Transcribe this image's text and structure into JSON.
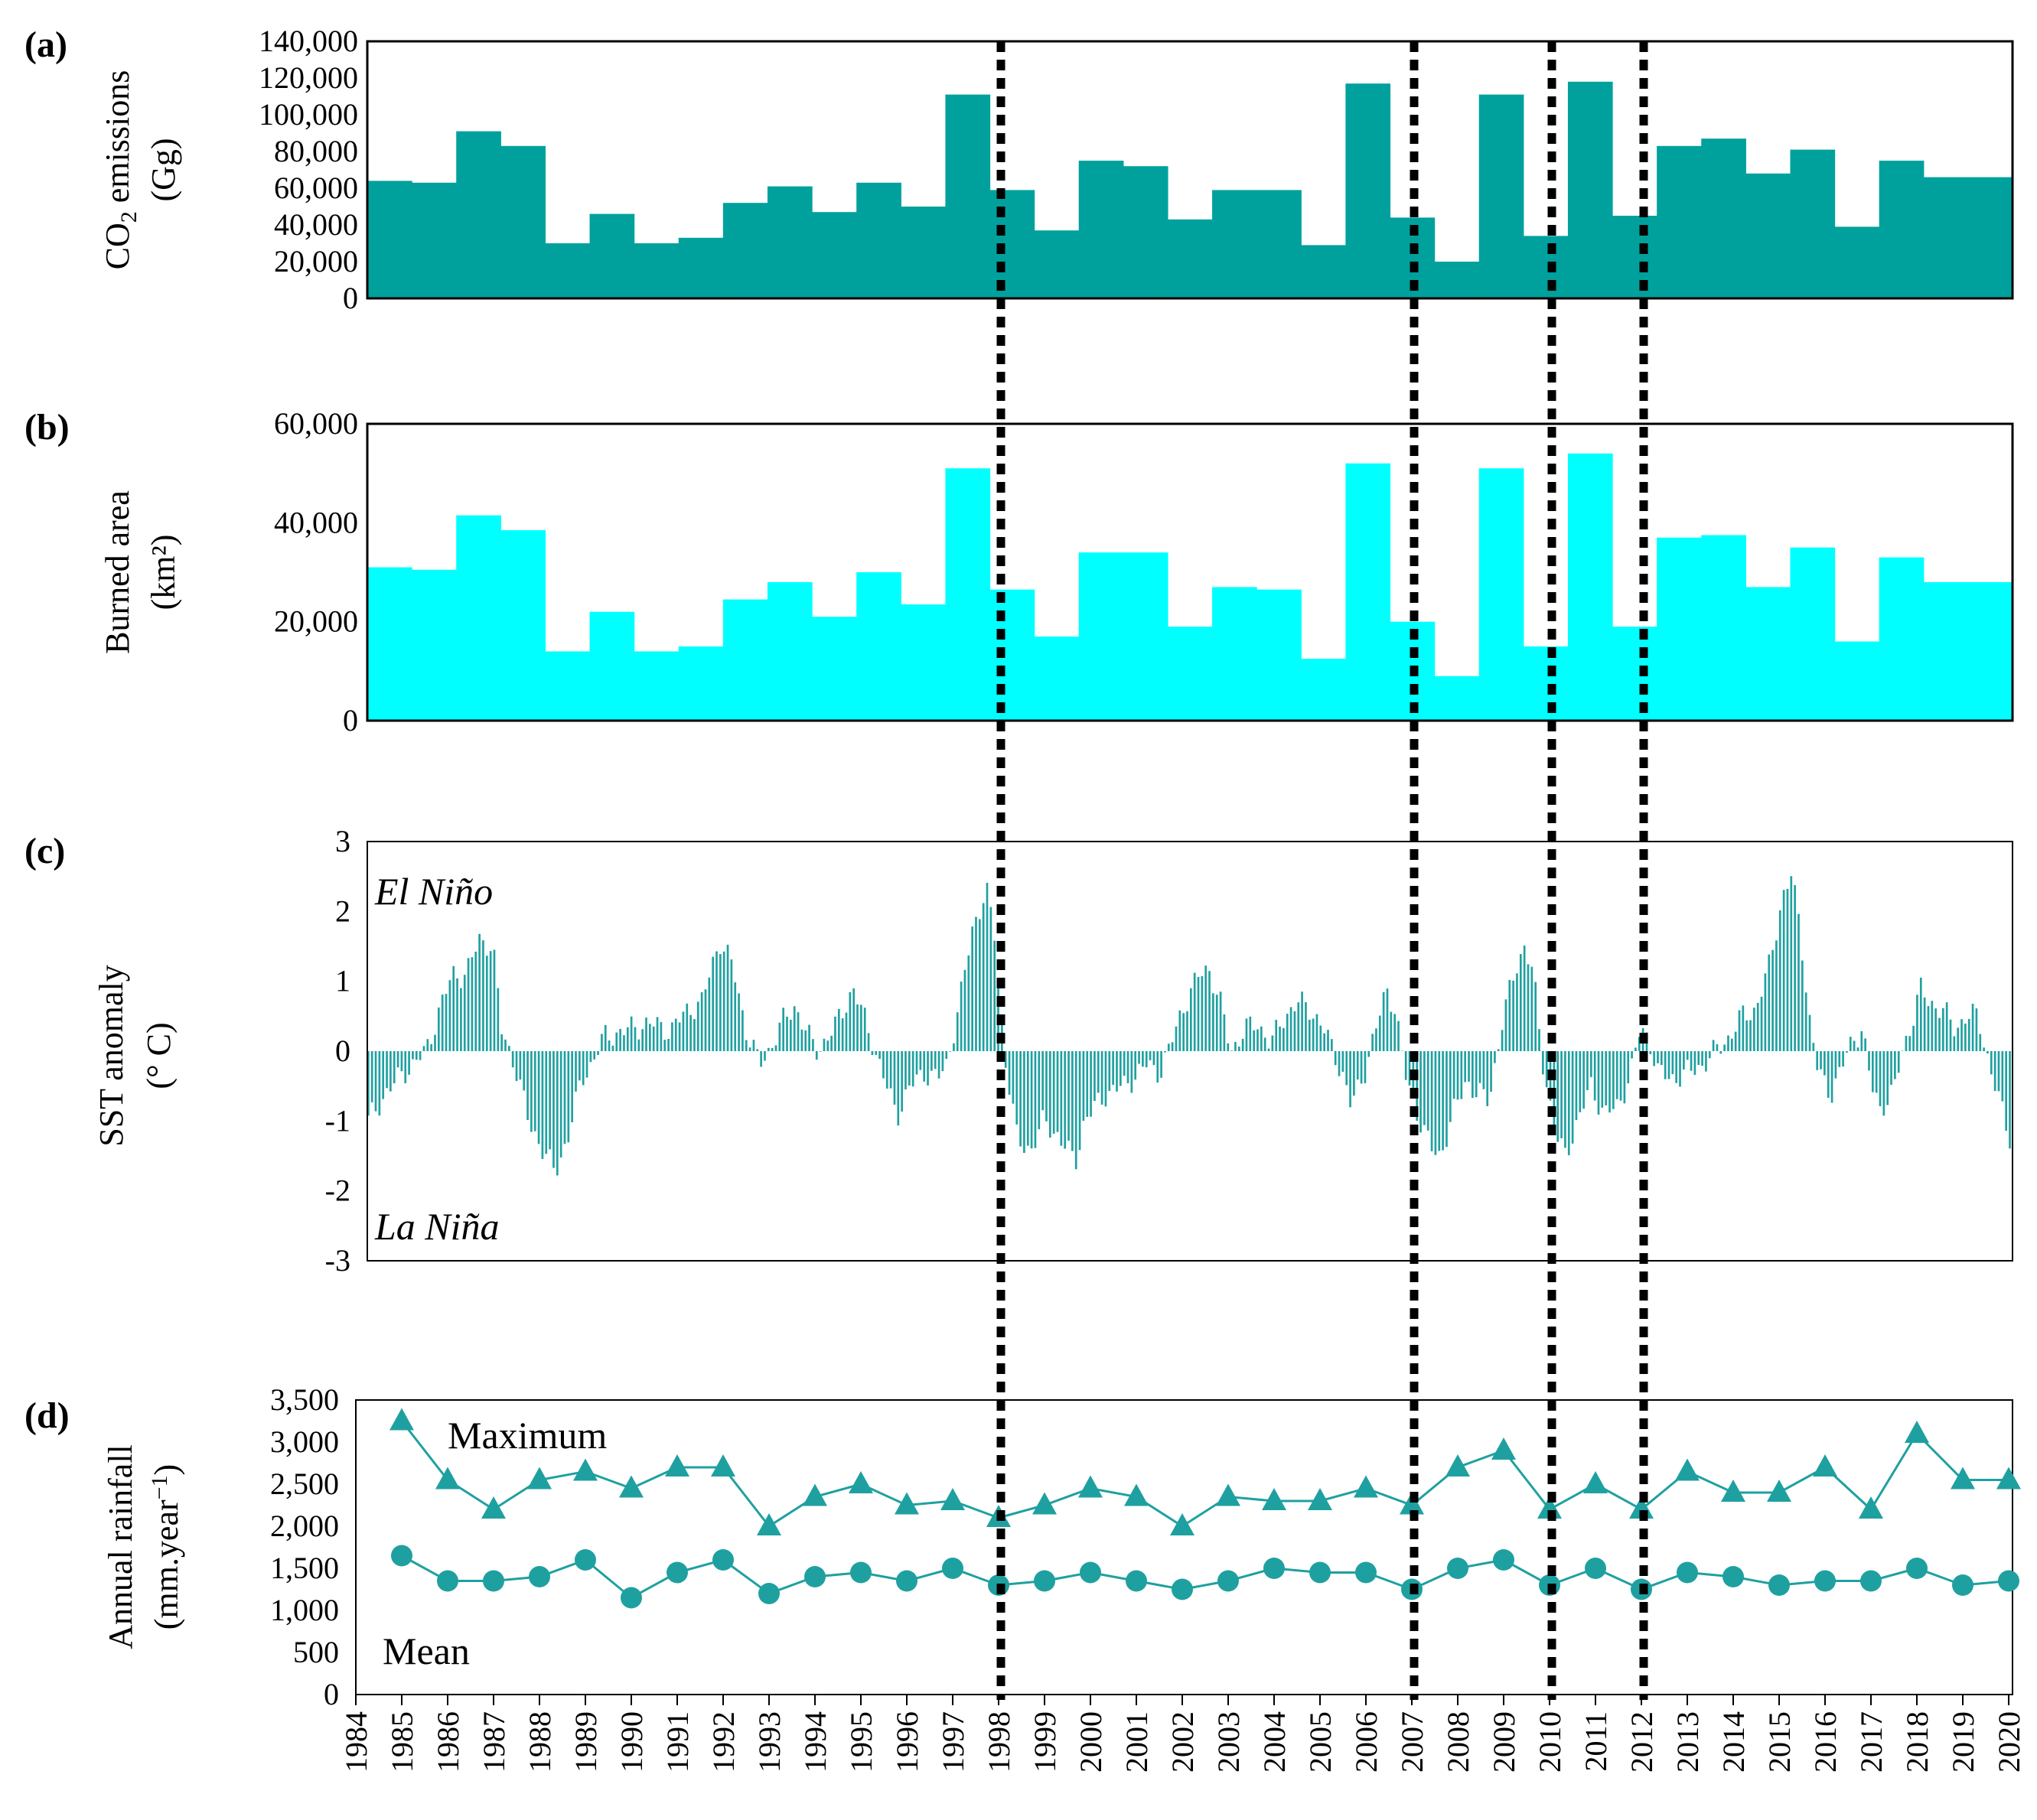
{
  "chart_data": [
    {
      "panel": "(a)",
      "type": "bar",
      "ylabel": "CO₂ emissions (Gg)",
      "ylabel_lines": [
        "CO",
        "2",
        " emissions",
        "(Gg)"
      ],
      "ylim": [
        0,
        140000
      ],
      "yticks": [
        "0",
        "20,000",
        "40,000",
        "60,000",
        "80,000",
        "100,000",
        "120,000",
        "140,000"
      ],
      "color": "#00A19D",
      "x": [
        1984,
        1985,
        1986,
        1987,
        1988,
        1989,
        1990,
        1991,
        1992,
        1993,
        1994,
        1995,
        1996,
        1997,
        1998,
        1999,
        2000,
        2001,
        2002,
        2003,
        2004,
        2005,
        2006,
        2007,
        2008,
        2009,
        2010,
        2011,
        2012,
        2013,
        2014,
        2015,
        2016,
        2017,
        2018,
        2019,
        2020
      ],
      "values": [
        64000,
        63000,
        91000,
        83000,
        30000,
        46000,
        30000,
        33000,
        52000,
        61000,
        47000,
        63000,
        50000,
        111000,
        59000,
        37000,
        75000,
        72000,
        43000,
        59000,
        59000,
        29000,
        117000,
        44000,
        20000,
        111000,
        34000,
        118000,
        45000,
        83000,
        87000,
        68000,
        81000,
        39000,
        75000,
        66000,
        66000
      ]
    },
    {
      "panel": "(b)",
      "type": "bar",
      "ylabel": "Burned area (km²)",
      "ylabel_lines": [
        "Burned area",
        "(km²)"
      ],
      "ylim": [
        0,
        60000
      ],
      "yticks": [
        "0",
        "20,000",
        "40,000",
        "60,000"
      ],
      "color": "#00FFFF",
      "x": [
        1984,
        1985,
        1986,
        1987,
        1988,
        1989,
        1990,
        1991,
        1992,
        1993,
        1994,
        1995,
        1996,
        1997,
        1998,
        1999,
        2000,
        2001,
        2002,
        2003,
        2004,
        2005,
        2006,
        2007,
        2008,
        2009,
        2010,
        2011,
        2012,
        2013,
        2014,
        2015,
        2016,
        2017,
        2018,
        2019,
        2020
      ],
      "values": [
        31000,
        30500,
        41500,
        38500,
        14000,
        22000,
        14000,
        15000,
        24500,
        28000,
        21000,
        30000,
        23500,
        51000,
        26500,
        17000,
        34000,
        34000,
        19000,
        27000,
        26500,
        12500,
        52000,
        20000,
        9000,
        51000,
        15000,
        54000,
        19000,
        37000,
        37500,
        27000,
        35000,
        16000,
        33000,
        28000,
        28000
      ]
    },
    {
      "panel": "(c)",
      "type": "bar",
      "ylabel": "SST anomaly (° C)",
      "ylabel_lines": [
        "SST anomaly",
        "(° C)"
      ],
      "ylim": [
        -3,
        3
      ],
      "yticks": [
        "-3",
        "-2",
        "-1",
        "0",
        "1",
        "2",
        "3"
      ],
      "color": "#1FA0A0",
      "annotations": [
        "El Niño",
        "La Niña"
      ],
      "x_start": 1984.0,
      "x_step_months": 1,
      "anchor_points": [
        [
          1984.0,
          -1.0
        ],
        [
          1984.4,
          -0.6
        ],
        [
          1984.8,
          -0.3
        ],
        [
          1985.0,
          -0.2
        ],
        [
          1985.3,
          0.0
        ],
        [
          1985.6,
          0.6
        ],
        [
          1985.9,
          1.1
        ],
        [
          1986.2,
          1.1
        ],
        [
          1986.5,
          1.6
        ],
        [
          1986.8,
          1.5
        ],
        [
          1987.0,
          0.3
        ],
        [
          1987.3,
          -0.2
        ],
        [
          1987.6,
          -1.0
        ],
        [
          1988.0,
          -1.5
        ],
        [
          1988.2,
          -1.75
        ],
        [
          1988.5,
          -1.2
        ],
        [
          1988.8,
          -0.4
        ],
        [
          1989.0,
          -0.2
        ],
        [
          1989.3,
          0.2
        ],
        [
          1989.8,
          0.3
        ],
        [
          1990.3,
          0.4
        ],
        [
          1990.8,
          0.3
        ],
        [
          1991.2,
          0.6
        ],
        [
          1991.5,
          0.7
        ],
        [
          1991.9,
          1.6
        ],
        [
          1992.2,
          1.2
        ],
        [
          1992.5,
          0.3
        ],
        [
          1992.8,
          -0.2
        ],
        [
          1993.0,
          0.0
        ],
        [
          1993.3,
          0.4
        ],
        [
          1993.6,
          0.65
        ],
        [
          1993.9,
          0.2
        ],
        [
          1994.1,
          0.0
        ],
        [
          1994.5,
          0.35
        ],
        [
          1994.9,
          0.9
        ],
        [
          1995.2,
          0.4
        ],
        [
          1995.4,
          0.0
        ],
        [
          1995.7,
          -0.6
        ],
        [
          1995.9,
          -0.9
        ],
        [
          1996.2,
          -0.5
        ],
        [
          1996.5,
          -0.3
        ],
        [
          1996.8,
          -0.4
        ],
        [
          1997.0,
          -0.2
        ],
        [
          1997.3,
          0.7
        ],
        [
          1997.6,
          1.8
        ],
        [
          1997.9,
          2.3
        ],
        [
          1998.1,
          1.6
        ],
        [
          1998.3,
          0.0
        ],
        [
          1998.6,
          -1.3
        ],
        [
          1998.9,
          -1.4
        ],
        [
          1999.2,
          -1.0
        ],
        [
          1999.5,
          -1.2
        ],
        [
          1999.9,
          -1.6
        ],
        [
          2000.1,
          -1.0
        ],
        [
          2000.6,
          -0.6
        ],
        [
          2001.0,
          -0.5
        ],
        [
          2001.5,
          -0.2
        ],
        [
          2001.8,
          -0.3
        ],
        [
          2002.0,
          0.0
        ],
        [
          2002.3,
          0.6
        ],
        [
          2002.7,
          1.1
        ],
        [
          2002.9,
          1.2
        ],
        [
          2003.2,
          0.6
        ],
        [
          2003.4,
          0.0
        ],
        [
          2003.7,
          0.3
        ],
        [
          2004.0,
          0.4
        ],
        [
          2004.3,
          0.1
        ],
        [
          2004.6,
          0.5
        ],
        [
          2004.9,
          0.7
        ],
        [
          2005.2,
          0.6
        ],
        [
          2005.5,
          0.3
        ],
        [
          2005.9,
          -0.3
        ],
        [
          2006.1,
          -0.8
        ],
        [
          2006.4,
          -0.3
        ],
        [
          2006.7,
          0.4
        ],
        [
          2006.9,
          0.9
        ],
        [
          2007.1,
          0.6
        ],
        [
          2007.3,
          -0.3
        ],
        [
          2007.6,
          -0.9
        ],
        [
          2007.9,
          -1.4
        ],
        [
          2008.1,
          -1.5
        ],
        [
          2008.4,
          -0.9
        ],
        [
          2008.7,
          -0.4
        ],
        [
          2008.9,
          -0.6
        ],
        [
          2009.2,
          -0.7
        ],
        [
          2009.5,
          0.4
        ],
        [
          2009.8,
          1.2
        ],
        [
          2010.0,
          1.5
        ],
        [
          2010.2,
          1.1
        ],
        [
          2010.4,
          -0.1
        ],
        [
          2010.7,
          -1.2
        ],
        [
          2010.9,
          -1.5
        ],
        [
          2011.2,
          -1.0
        ],
        [
          2011.5,
          -0.5
        ],
        [
          2011.8,
          -0.9
        ],
        [
          2012.1,
          -0.8
        ],
        [
          2012.4,
          -0.3
        ],
        [
          2012.6,
          0.3
        ],
        [
          2012.8,
          0.2
        ],
        [
          2013.0,
          -0.3
        ],
        [
          2013.3,
          -0.4
        ],
        [
          2013.7,
          -0.3
        ],
        [
          2014.0,
          -0.2
        ],
        [
          2014.3,
          0.0
        ],
        [
          2014.6,
          0.2
        ],
        [
          2014.9,
          0.5
        ],
        [
          2015.2,
          0.6
        ],
        [
          2015.5,
          1.2
        ],
        [
          2015.8,
          2.2
        ],
        [
          2016.0,
          2.5
        ],
        [
          2016.2,
          1.8
        ],
        [
          2016.4,
          0.5
        ],
        [
          2016.6,
          -0.3
        ],
        [
          2016.9,
          -0.6
        ],
        [
          2017.1,
          -0.3
        ],
        [
          2017.4,
          0.2
        ],
        [
          2017.6,
          0.3
        ],
        [
          2017.8,
          -0.5
        ],
        [
          2018.0,
          -0.8
        ],
        [
          2018.3,
          -0.6
        ],
        [
          2018.5,
          0.0
        ],
        [
          2018.8,
          0.6
        ],
        [
          2018.9,
          0.9
        ],
        [
          2019.1,
          0.7
        ],
        [
          2019.4,
          0.6
        ],
        [
          2019.7,
          0.3
        ],
        [
          2019.9,
          0.5
        ],
        [
          2020.2,
          0.5
        ],
        [
          2020.5,
          -0.3
        ],
        [
          2020.8,
          -1.0
        ],
        [
          2020.95,
          -1.3
        ]
      ]
    },
    {
      "panel": "(d)",
      "type": "line",
      "ylabel": "Annual rainfall (mm.year⁻¹)",
      "ylabel_lines": [
        "Annual rainfall",
        "(mm.year",
        "−1",
        ")"
      ],
      "ylim": [
        0,
        3500
      ],
      "yticks": [
        "0",
        "500",
        "1,000",
        "1,500",
        "2,000",
        "2,500",
        "3,000",
        "3,500"
      ],
      "color": "#1FA0A0",
      "categories": [
        "1984",
        "1985",
        "1986",
        "1987",
        "1988",
        "1989",
        "1990",
        "1991",
        "1992",
        "1993",
        "1994",
        "1995",
        "1996",
        "1997",
        "1998",
        "1999",
        "2000",
        "2001",
        "2002",
        "2003",
        "2004",
        "2005",
        "2006",
        "2007",
        "2008",
        "2009",
        "2010",
        "2011",
        "2012",
        "2013",
        "2014",
        "2015",
        "2016",
        "2017",
        "2018",
        "2019",
        "2020"
      ],
      "series": [
        {
          "name": "Maximum",
          "marker": "triangle",
          "x": [
            1985,
            1986,
            1987,
            1988,
            1989,
            1990,
            1991,
            1992,
            1993,
            1994,
            1995,
            1996,
            1997,
            1998,
            1999,
            2000,
            2001,
            2002,
            2003,
            2004,
            2005,
            2006,
            2007,
            2008,
            2009,
            2010,
            2011,
            2012,
            2013,
            2014,
            2015,
            2016,
            2017,
            2018,
            2019,
            2020
          ],
          "values": [
            3250,
            2550,
            2200,
            2550,
            2650,
            2450,
            2700,
            2700,
            2000,
            2350,
            2500,
            2250,
            2300,
            2100,
            2250,
            2450,
            2350,
            2000,
            2350,
            2300,
            2300,
            2450,
            2250,
            2700,
            2900,
            2200,
            2500,
            2200,
            2650,
            2400,
            2400,
            2700,
            2200,
            3100,
            2550,
            2550
          ]
        },
        {
          "name": "Mean",
          "marker": "circle",
          "x": [
            1985,
            1986,
            1987,
            1988,
            1989,
            1990,
            1991,
            1992,
            1993,
            1994,
            1995,
            1996,
            1997,
            1998,
            1999,
            2000,
            2001,
            2002,
            2003,
            2004,
            2005,
            2006,
            2007,
            2008,
            2009,
            2010,
            2011,
            2012,
            2013,
            2014,
            2015,
            2016,
            2017,
            2018,
            2019,
            2020
          ],
          "values": [
            1650,
            1350,
            1350,
            1400,
            1600,
            1150,
            1450,
            1600,
            1200,
            1400,
            1450,
            1350,
            1500,
            1300,
            1350,
            1450,
            1350,
            1250,
            1350,
            1500,
            1450,
            1450,
            1250,
            1500,
            1600,
            1300,
            1500,
            1250,
            1450,
            1400,
            1300,
            1350,
            1350,
            1500,
            1300,
            1350
          ]
        }
      ],
      "xticks": [
        "1984",
        "1985",
        "1986",
        "1987",
        "1988",
        "1989",
        "1990",
        "1991",
        "1992",
        "1993",
        "1994",
        "1995",
        "1996",
        "1997",
        "1998",
        "1999",
        "2000",
        "2001",
        "2002",
        "2003",
        "2004",
        "2005",
        "2006",
        "2007",
        "2008",
        "2009",
        "2010",
        "2011",
        "2012",
        "2013",
        "2014",
        "2015",
        "2016",
        "2017",
        "2018",
        "2019",
        "2020"
      ]
    }
  ],
  "highlight_years": [
    1998,
    2007,
    2010,
    2012
  ]
}
